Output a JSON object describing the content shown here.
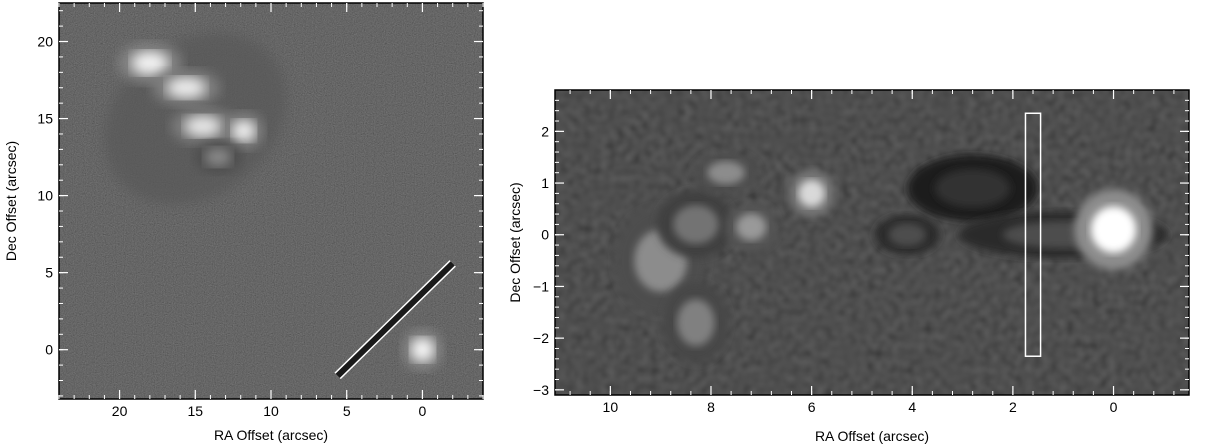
{
  "chart_data": [
    {
      "type": "image",
      "xlabel": "RA Offset (arcsec)",
      "ylabel": "Dec Offset (arcsec)",
      "xlim": [
        24,
        -4
      ],
      "ylim": [
        -3.2,
        22.5
      ],
      "xticks": [
        20,
        15,
        10,
        5,
        0
      ],
      "yticks": [
        0,
        5,
        10,
        15,
        20
      ],
      "background": "#111111",
      "sources": [
        {
          "x": 18,
          "y": 18.6,
          "rx": 1.6,
          "ry": 1.0,
          "peak": 0.95
        },
        {
          "x": 15.6,
          "y": 17.0,
          "rx": 1.7,
          "ry": 0.9,
          "peak": 0.92
        },
        {
          "x": 14.5,
          "y": 14.5,
          "rx": 1.6,
          "ry": 0.9,
          "peak": 0.9
        },
        {
          "x": 11.8,
          "y": 14.2,
          "rx": 1.0,
          "ry": 0.9,
          "peak": 0.95
        },
        {
          "x": 13.5,
          "y": 12.5,
          "rx": 1.2,
          "ry": 0.8,
          "peak": 0.55
        },
        {
          "x": 0,
          "y": 0,
          "rx": 1.0,
          "ry": 1.0,
          "peak": 0.98
        }
      ],
      "diffuse": {
        "x": 15,
        "y": 15,
        "rx": 6.5,
        "ry": 5.0,
        "rotate": -38,
        "peak": 0.35
      },
      "slit": [
        {
          "x": 5.6,
          "y": -1.7
        },
        {
          "x": -2.0,
          "y": 5.6
        }
      ]
    },
    {
      "type": "image",
      "xlabel": "RA Offset (arcsec)",
      "ylabel": "Dec Offset (arcsec)",
      "xlim": [
        11.1,
        -1.5
      ],
      "ylim": [
        -3.1,
        2.8
      ],
      "xticks": [
        10,
        8,
        6,
        4,
        2,
        0
      ],
      "yticks": [
        2,
        1,
        0,
        -1,
        -2,
        -3
      ],
      "background": "#141414",
      "sources": [
        {
          "x": 9.0,
          "y": -0.5,
          "rx": 0.7,
          "ry": 0.8,
          "peak": 0.55
        },
        {
          "x": 8.3,
          "y": -1.7,
          "rx": 0.5,
          "ry": 0.6,
          "peak": 0.5
        },
        {
          "x": 8.3,
          "y": 0.2,
          "rx": 0.6,
          "ry": 0.5,
          "peak": 0.45
        },
        {
          "x": 7.7,
          "y": 1.2,
          "rx": 0.5,
          "ry": 0.3,
          "peak": 0.55
        },
        {
          "x": 7.2,
          "y": 0.15,
          "rx": 0.4,
          "ry": 0.35,
          "peak": 0.6
        },
        {
          "x": 6.0,
          "y": 0.8,
          "rx": 0.35,
          "ry": 0.35,
          "peak": 0.85
        },
        {
          "x": 4.1,
          "y": 0.0,
          "rx": 0.5,
          "ry": 0.3,
          "peak": 0.3
        },
        {
          "x": 2.8,
          "y": 0.9,
          "rx": 1.0,
          "ry": 0.5,
          "peak": 0.2
        },
        {
          "x": 1.0,
          "y": 0.0,
          "rx": 1.6,
          "ry": 0.35,
          "peak": 0.3
        },
        {
          "x": 0.0,
          "y": 0.1,
          "rx": 0.6,
          "ry": 0.6,
          "peak": 1.0
        }
      ],
      "slit": {
        "x0": 1.75,
        "x1": 1.45,
        "y0": -2.35,
        "y1": 2.35
      }
    }
  ]
}
